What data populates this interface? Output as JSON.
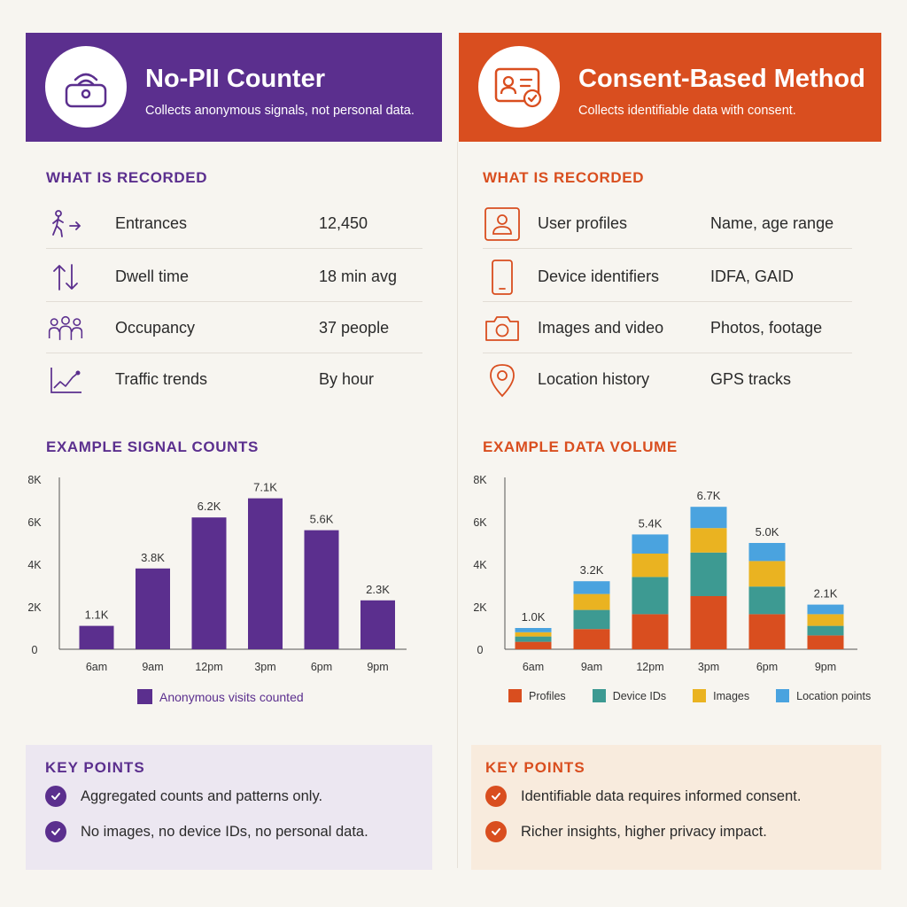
{
  "colors": {
    "purple": "#5b2f8e",
    "orange": "#d94e1f",
    "teal": "#3d9a92",
    "yellow": "#eab321",
    "blue": "#4aa3df"
  },
  "left": {
    "header": {
      "icon": "wifi-bag-icon",
      "title": "No-PII Counter",
      "subtitle": "Collects anonymous signals, not personal data."
    },
    "recorded_title": "WHAT IS RECORDED",
    "rows": [
      {
        "icon": "walking-person-icon",
        "label": "Entrances",
        "value": "12,450"
      },
      {
        "icon": "up-down-arrows-icon",
        "label": "Dwell time",
        "value": "18 min avg"
      },
      {
        "icon": "people-group-icon",
        "label": "Occupancy",
        "value": "37 people"
      },
      {
        "icon": "trend-line-icon",
        "label": "Traffic trends",
        "value": "By hour"
      }
    ],
    "chart_title": "EXAMPLE SIGNAL COUNTS",
    "key_title": "KEY POINTS",
    "key_points": [
      "Aggregated counts and patterns only.",
      "No images, no device IDs, no personal data."
    ]
  },
  "right": {
    "header": {
      "icon": "id-card-check-icon",
      "title": "Consent-Based Method",
      "subtitle": "Collects identifiable data with consent."
    },
    "recorded_title": "WHAT IS RECORDED",
    "rows": [
      {
        "icon": "user-profile-icon",
        "label": "User profiles",
        "value": "Name, age range"
      },
      {
        "icon": "phone-icon",
        "label": "Device identifiers",
        "value": "IDFA, GAID"
      },
      {
        "icon": "camera-icon",
        "label": "Images and video",
        "value": "Photos, footage"
      },
      {
        "icon": "location-pin-icon",
        "label": "Location history",
        "value": "GPS tracks"
      }
    ],
    "chart_title": "EXAMPLE DATA VOLUME",
    "key_title": "KEY POINTS",
    "key_points": [
      "Identifiable data requires informed consent.",
      "Richer insights, higher privacy impact."
    ]
  },
  "chart_data": [
    {
      "type": "bar",
      "title": "EXAMPLE SIGNAL COUNTS",
      "categories": [
        "6am",
        "9am",
        "12pm",
        "3pm",
        "6pm",
        "9pm"
      ],
      "series": [
        {
          "name": "Anonymous visits counted",
          "values": [
            1100,
            3800,
            6200,
            7100,
            5600,
            2300
          ]
        }
      ],
      "data_labels": [
        "1.1K",
        "3.8K",
        "6.2K",
        "7.1K",
        "5.6K",
        "2.3K"
      ],
      "yticks": [
        "0",
        "2K",
        "4K",
        "6K",
        "8K"
      ],
      "ylim": [
        0,
        8000
      ],
      "legend": "bottom"
    },
    {
      "type": "bar",
      "stacked": true,
      "title": "EXAMPLE DATA VOLUME",
      "categories": [
        "6am",
        "9am",
        "12pm",
        "3pm",
        "6pm",
        "9pm"
      ],
      "series": [
        {
          "name": "Profiles",
          "values": [
            350,
            950,
            1650,
            2500,
            1650,
            650
          ]
        },
        {
          "name": "Device IDs",
          "values": [
            250,
            900,
            1750,
            2050,
            1300,
            450
          ]
        },
        {
          "name": "Images",
          "values": [
            200,
            750,
            1100,
            1150,
            1200,
            550
          ]
        },
        {
          "name": "Location points",
          "values": [
            200,
            600,
            900,
            1000,
            850,
            450
          ]
        }
      ],
      "data_labels": [
        "1.0K",
        "3.2K",
        "5.4K",
        "6.7K",
        "5.0K",
        "2.1K"
      ],
      "yticks": [
        "0",
        "2K",
        "4K",
        "6K",
        "8K"
      ],
      "ylim": [
        0,
        8000
      ],
      "legend": "bottom"
    }
  ]
}
